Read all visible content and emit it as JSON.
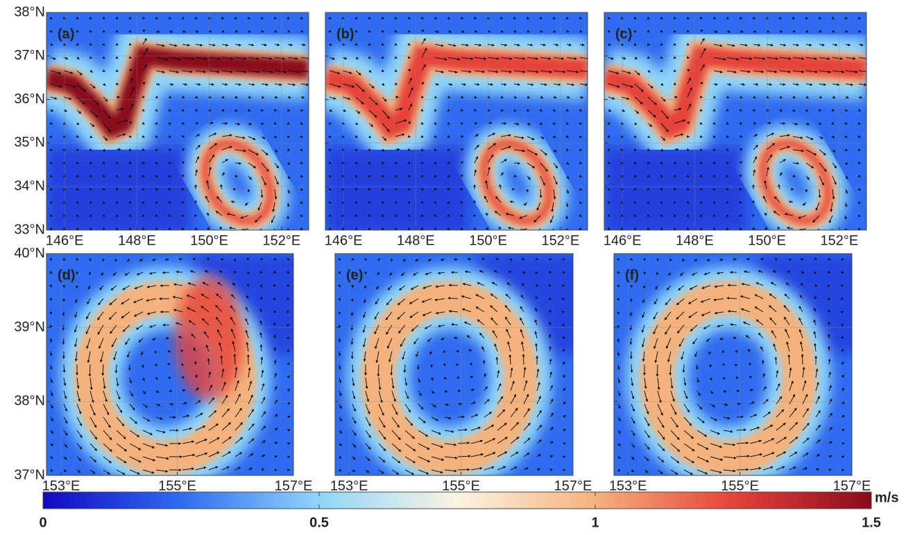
{
  "chart_data": [
    {
      "type": "heatmap",
      "label": "(a)",
      "xlim": [
        145.5,
        152.75
      ],
      "ylim": [
        33,
        38
      ],
      "xticks": [
        {
          "value": 146,
          "label": "146°E"
        },
        {
          "value": 148,
          "label": "148°E"
        },
        {
          "value": 150,
          "label": "150°E"
        },
        {
          "value": 152,
          "label": "152°E"
        }
      ],
      "yticks": [
        {
          "value": 33,
          "label": "33°N"
        },
        {
          "value": 34,
          "label": "34°N"
        },
        {
          "value": 35,
          "label": "35°N"
        },
        {
          "value": 36,
          "label": "36°N"
        },
        {
          "value": 37,
          "label": "37°N"
        },
        {
          "value": 38,
          "label": "38°N"
        }
      ]
    },
    {
      "type": "heatmap",
      "label": "(b)",
      "xlim": [
        145.5,
        152.75
      ],
      "ylim": [
        33,
        38
      ],
      "xticks": [
        {
          "value": 146,
          "label": "146°E"
        },
        {
          "value": 148,
          "label": "148°E"
        },
        {
          "value": 150,
          "label": "150°E"
        },
        {
          "value": 152,
          "label": "152°E"
        }
      ]
    },
    {
      "type": "heatmap",
      "label": "(c)",
      "xlim": [
        145.5,
        152.75
      ],
      "ylim": [
        33,
        38
      ],
      "xticks": [
        {
          "value": 146,
          "label": "146°E"
        },
        {
          "value": 148,
          "label": "148°E"
        },
        {
          "value": 150,
          "label": "150°E"
        },
        {
          "value": 152,
          "label": "152°E"
        }
      ]
    },
    {
      "type": "heatmap",
      "label": "(d)",
      "xlim": [
        152.75,
        157
      ],
      "ylim": [
        37,
        40
      ],
      "xticks": [
        {
          "value": 153,
          "label": "153°E"
        },
        {
          "value": 155,
          "label": "155°E"
        },
        {
          "value": 157,
          "label": "157°E"
        }
      ],
      "yticks": [
        {
          "value": 37,
          "label": "37°N"
        },
        {
          "value": 38,
          "label": "38°N"
        },
        {
          "value": 39,
          "label": "39°N"
        },
        {
          "value": 40,
          "label": "40°N"
        }
      ]
    },
    {
      "type": "heatmap",
      "label": "(e)",
      "xlim": [
        152.75,
        157
      ],
      "ylim": [
        37,
        40
      ],
      "xticks": [
        {
          "value": 153,
          "label": "153°E"
        },
        {
          "value": 155,
          "label": "155°E"
        },
        {
          "value": 157,
          "label": "157°E"
        }
      ]
    },
    {
      "type": "heatmap",
      "label": "(f)",
      "xlim": [
        152.75,
        157
      ],
      "ylim": [
        37,
        40
      ],
      "xticks": [
        {
          "value": 153,
          "label": "153°E"
        },
        {
          "value": 155,
          "label": "155°E"
        },
        {
          "value": 157,
          "label": "157°E"
        }
      ]
    },
    {
      "type": "colorbar",
      "unit": "m/s",
      "clim": [
        0,
        1.5
      ],
      "ticks": [
        0,
        0.5,
        1,
        1.5
      ],
      "colors": [
        "#1208c4",
        "#2f6cf0",
        "#8fd6fa",
        "#fbf4e2",
        "#f5b27c",
        "#e6423a",
        "#8a0a1c"
      ]
    }
  ]
}
